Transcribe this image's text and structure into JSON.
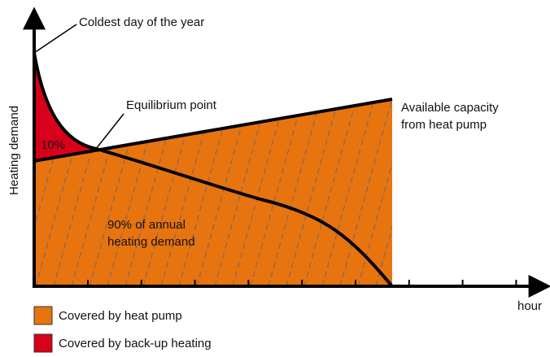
{
  "axes": {
    "y_label": "Heating demand",
    "x_label": "hour"
  },
  "annotations": {
    "coldest": "Coldest day of the year",
    "equilibrium": "Equilibrium point",
    "capacity_1": "Available capacity",
    "capacity_2": "from heat pump",
    "backup_share": "10%",
    "pump_share_1": "90% of annual",
    "pump_share_2": "heating demand"
  },
  "legend": [
    {
      "label": "Covered by heat pump",
      "color": "#e8740f"
    },
    {
      "label": "Covered by back-up heating",
      "color": "#d9001b"
    }
  ]
}
